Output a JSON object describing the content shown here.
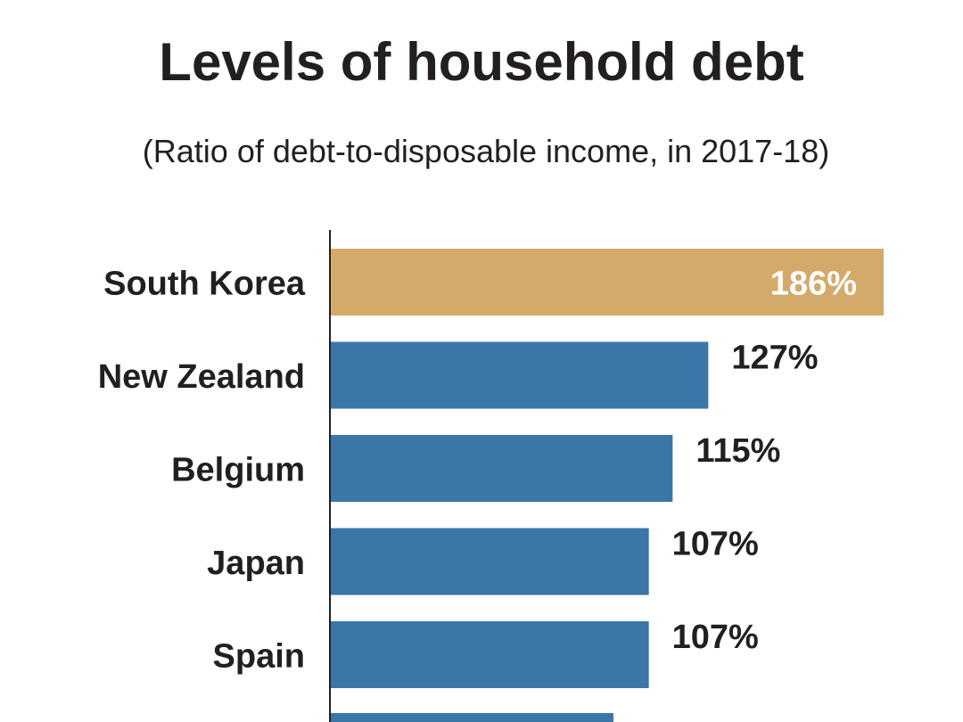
{
  "chart_data": {
    "type": "bar",
    "orientation": "horizontal",
    "title": "Levels of household debt",
    "subtitle": "(Ratio of debt-to-disposable income, in 2017-18)",
    "categories": [
      "South Korea",
      "New Zealand",
      "Belgium",
      "Japan",
      "Spain"
    ],
    "values": [
      186,
      127,
      115,
      107,
      107
    ],
    "value_labels": [
      "186%",
      "127%",
      "115%",
      "107%",
      "107%"
    ],
    "unit": "%",
    "xlim": [
      0,
      186
    ],
    "grid": false,
    "highlight_category": "South Korea",
    "colors": {
      "highlight": "#d4aa6a",
      "default": "#3a76a8",
      "axis": "#231f20",
      "text": "#231f20"
    }
  }
}
